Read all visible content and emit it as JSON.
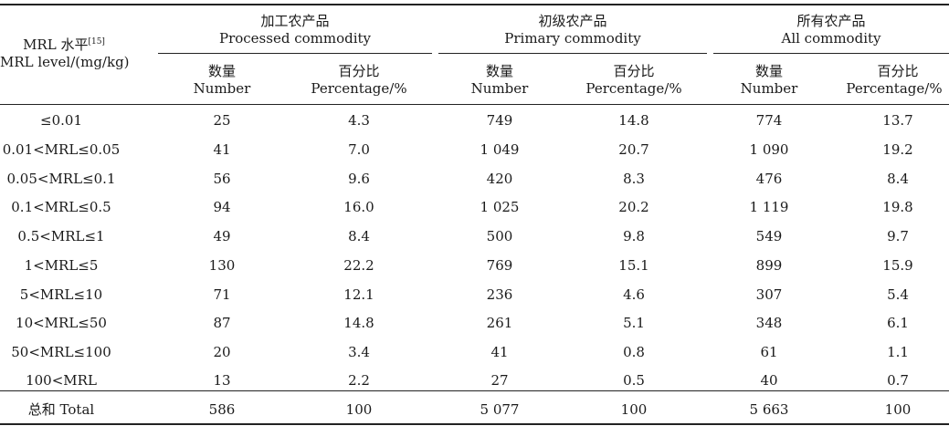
{
  "table": {
    "row_header": {
      "line1": "MRL 水平",
      "ref": "[15]",
      "line2": "MRL level/(mg/kg)"
    },
    "groups": [
      {
        "cn": "加工农产品",
        "en": "Processed commodity"
      },
      {
        "cn": "初级农产品",
        "en": "Primary commodity"
      },
      {
        "cn": "所有农产品",
        "en": "All commodity"
      }
    ],
    "sub_headers": {
      "number_cn": "数量",
      "number_en": "Number",
      "pct_cn": "百分比",
      "pct_en": "Percentage/%"
    },
    "rows": [
      {
        "level": "≤0.01",
        "v": [
          "25",
          "4.3",
          "749",
          "14.8",
          "774",
          "13.7"
        ]
      },
      {
        "level": "0.01<MRL≤0.05",
        "v": [
          "41",
          "7.0",
          "1 049",
          "20.7",
          "1 090",
          "19.2"
        ]
      },
      {
        "level": "0.05<MRL≤0.1",
        "v": [
          "56",
          "9.6",
          "420",
          "8.3",
          "476",
          "8.4"
        ]
      },
      {
        "level": "0.1<MRL≤0.5",
        "v": [
          "94",
          "16.0",
          "1 025",
          "20.2",
          "1 119",
          "19.8"
        ]
      },
      {
        "level": "0.5<MRL≤1",
        "v": [
          "49",
          "8.4",
          "500",
          "9.8",
          "549",
          "9.7"
        ]
      },
      {
        "level": "1<MRL≤5",
        "v": [
          "130",
          "22.2",
          "769",
          "15.1",
          "899",
          "15.9"
        ]
      },
      {
        "level": "5<MRL≤10",
        "v": [
          "71",
          "12.1",
          "236",
          "4.6",
          "307",
          "5.4"
        ]
      },
      {
        "level": "10<MRL≤50",
        "v": [
          "87",
          "14.8",
          "261",
          "5.1",
          "348",
          "6.1"
        ]
      },
      {
        "level": "50<MRL≤100",
        "v": [
          "20",
          "3.4",
          "41",
          "0.8",
          "61",
          "1.1"
        ]
      },
      {
        "level": "100<MRL",
        "v": [
          "13",
          "2.2",
          "27",
          "0.5",
          "40",
          "0.7"
        ]
      }
    ],
    "total": {
      "label": "总和 Total",
      "v": [
        "586",
        "100",
        "5 077",
        "100",
        "5 663",
        "100"
      ]
    }
  }
}
